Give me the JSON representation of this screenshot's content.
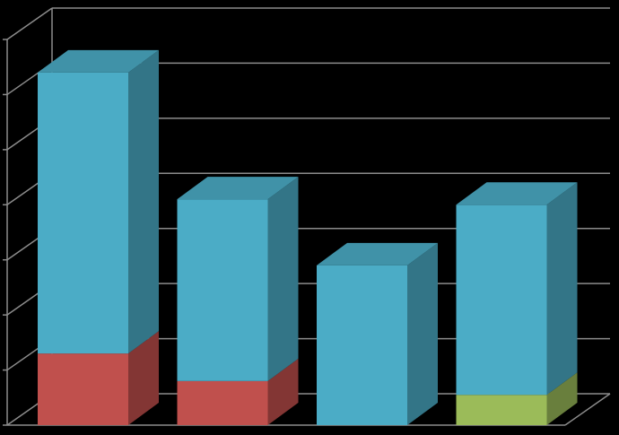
{
  "chart_data": {
    "type": "bar3d",
    "stacked": true,
    "categories": [
      null,
      null,
      null,
      null
    ],
    "series": [
      {
        "color": "#c0504d",
        "values": [
          1.3,
          0.8,
          0,
          0
        ]
      },
      {
        "color": "#9bbb59",
        "values": [
          0,
          0,
          0,
          0.55
        ]
      },
      {
        "color": "#4bacc6",
        "values": [
          5.1,
          3.3,
          2.9,
          3.45
        ]
      }
    ],
    "ylim": [
      0,
      7
    ],
    "yticks": [
      0,
      1,
      2,
      3,
      4,
      5,
      6,
      7
    ],
    "grid": true
  }
}
